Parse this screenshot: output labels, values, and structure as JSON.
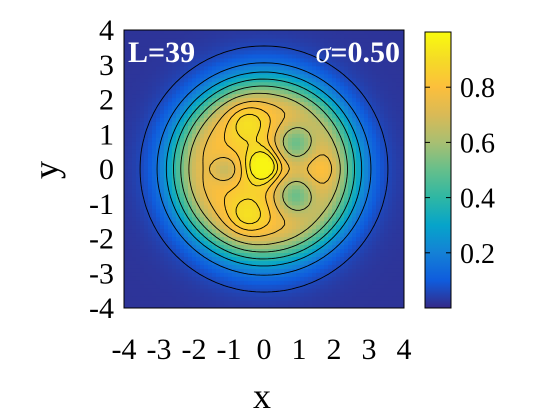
{
  "chart_data": {
    "type": "heatmap",
    "title": "",
    "xlabel": "x",
    "ylabel": "y",
    "xlim": [
      -4,
      4
    ],
    "ylim": [
      -4,
      4
    ],
    "x_ticks": [
      "-4",
      "-3",
      "-2",
      "-1",
      "0",
      "1",
      "2",
      "3",
      "4"
    ],
    "y_ticks": [
      "-4",
      "-3",
      "-2",
      "-1",
      "0",
      "1",
      "2",
      "3",
      "4"
    ],
    "annotations": {
      "left": "L=39",
      "right_symbol": "σ",
      "right_value": "=0.50"
    },
    "colorbar": {
      "range": [
        0,
        1
      ],
      "ticks": [
        "0.2",
        "0.4",
        "0.6",
        "0.8"
      ],
      "tick_values": [
        0.2,
        0.4,
        0.6,
        0.8
      ],
      "colormap": "parula"
    },
    "field": {
      "disk_radius": 2.5,
      "disk_level": 0.82,
      "edge_width": 0.35,
      "features": [
        {
          "x": 0.0,
          "y": 0.1,
          "amp": 0.2,
          "width": 0.35,
          "peak": "yellow-center"
        },
        {
          "x": 0.9,
          "y": 0.75,
          "amp": -0.32,
          "width": 0.42,
          "peak": "teal-lobe"
        },
        {
          "x": 0.9,
          "y": -0.75,
          "amp": -0.32,
          "width": 0.42,
          "peak": "teal-lobe"
        },
        {
          "x": -0.5,
          "y": 1.45,
          "amp": 0.12,
          "width": 0.45,
          "peak": "yellow-upper"
        },
        {
          "x": -0.5,
          "y": -1.45,
          "amp": 0.12,
          "width": 0.45,
          "peak": "yellow-lower"
        },
        {
          "x": -1.1,
          "y": 0.0,
          "amp": -0.16,
          "width": 0.3,
          "peak": "green-left"
        },
        {
          "x": 1.75,
          "y": 0.0,
          "amp": 0.06,
          "width": 0.3,
          "peak": "yellow-right"
        }
      ],
      "contour_levels": [
        0.06,
        0.16,
        0.27,
        0.38,
        0.5,
        0.62,
        0.74,
        0.82,
        0.88,
        0.93
      ]
    },
    "colors": {
      "background": "#3e2f9c",
      "axis_box": "#000000"
    }
  }
}
